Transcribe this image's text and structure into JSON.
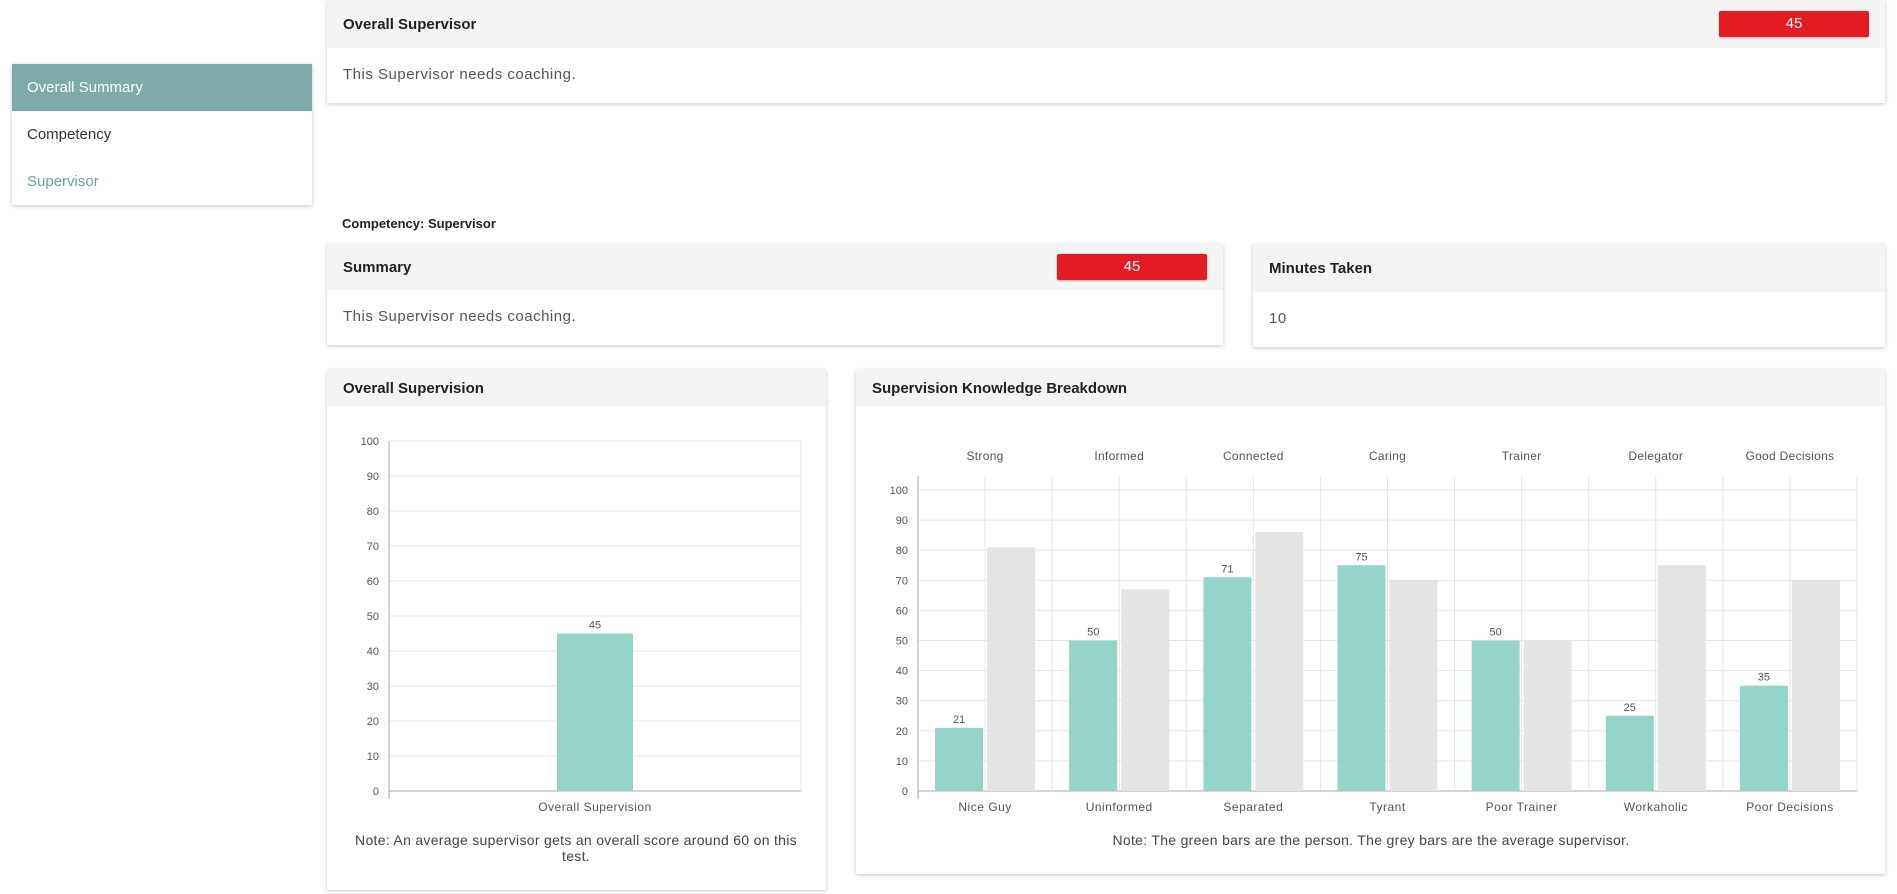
{
  "sidebar": {
    "items": [
      {
        "label": "Overall Summary"
      },
      {
        "label": "Competency"
      },
      {
        "label": "Supervisor"
      }
    ]
  },
  "overall_card": {
    "title": "Overall Supervisor",
    "score": "45",
    "message": "This Supervisor needs coaching."
  },
  "competency_label": "Competency: Supervisor",
  "summary_card": {
    "title": "Summary",
    "score": "45",
    "message": "This Supervisor needs coaching."
  },
  "minutes_card": {
    "title": "Minutes Taken",
    "value": "10"
  },
  "colors": {
    "badge": "#e41b23",
    "person_bar": "#94d4c9",
    "average_bar": "#e4e4e4",
    "sidebar_active": "#7eaaaa"
  },
  "overall_chart_card": {
    "title": "Overall Supervision",
    "note": "Note: An average supervisor gets an overall score around 60 on this test."
  },
  "breakdown_chart_card": {
    "title": "Supervision Knowledge Breakdown",
    "note": "Note: The green bars are the person. The grey bars are the average supervisor."
  },
  "chart_data": [
    {
      "type": "bar",
      "title": "Overall Supervision",
      "categories": [
        "Overall Supervision"
      ],
      "values": [
        45
      ],
      "data_labels": [
        "45"
      ],
      "ylim": [
        0,
        100
      ],
      "yticks": [
        0,
        10,
        20,
        30,
        40,
        50,
        60,
        70,
        80,
        90,
        100
      ],
      "grid": true
    },
    {
      "type": "bar",
      "title": "Supervision Knowledge Breakdown",
      "top_labels": [
        "Strong",
        "Informed",
        "Connected",
        "Caring",
        "Trainer",
        "Delegator",
        "Good Decisions"
      ],
      "categories": [
        "Nice Guy",
        "Uninformed",
        "Separated",
        "Tyrant",
        "Poor Trainer",
        "Workaholic",
        "Poor Decisions"
      ],
      "series": [
        {
          "name": "Person",
          "values": [
            21,
            50,
            71,
            75,
            50,
            25,
            35
          ]
        },
        {
          "name": "Average supervisor",
          "values": [
            81,
            67,
            86,
            70,
            50,
            75,
            70
          ]
        }
      ],
      "data_labels": [
        "21",
        "50",
        "71",
        "75",
        "50",
        "25",
        "35"
      ],
      "ylim": [
        0,
        100
      ],
      "yticks": [
        0,
        10,
        20,
        30,
        40,
        50,
        60,
        70,
        80,
        90,
        100
      ],
      "grid": true
    }
  ]
}
